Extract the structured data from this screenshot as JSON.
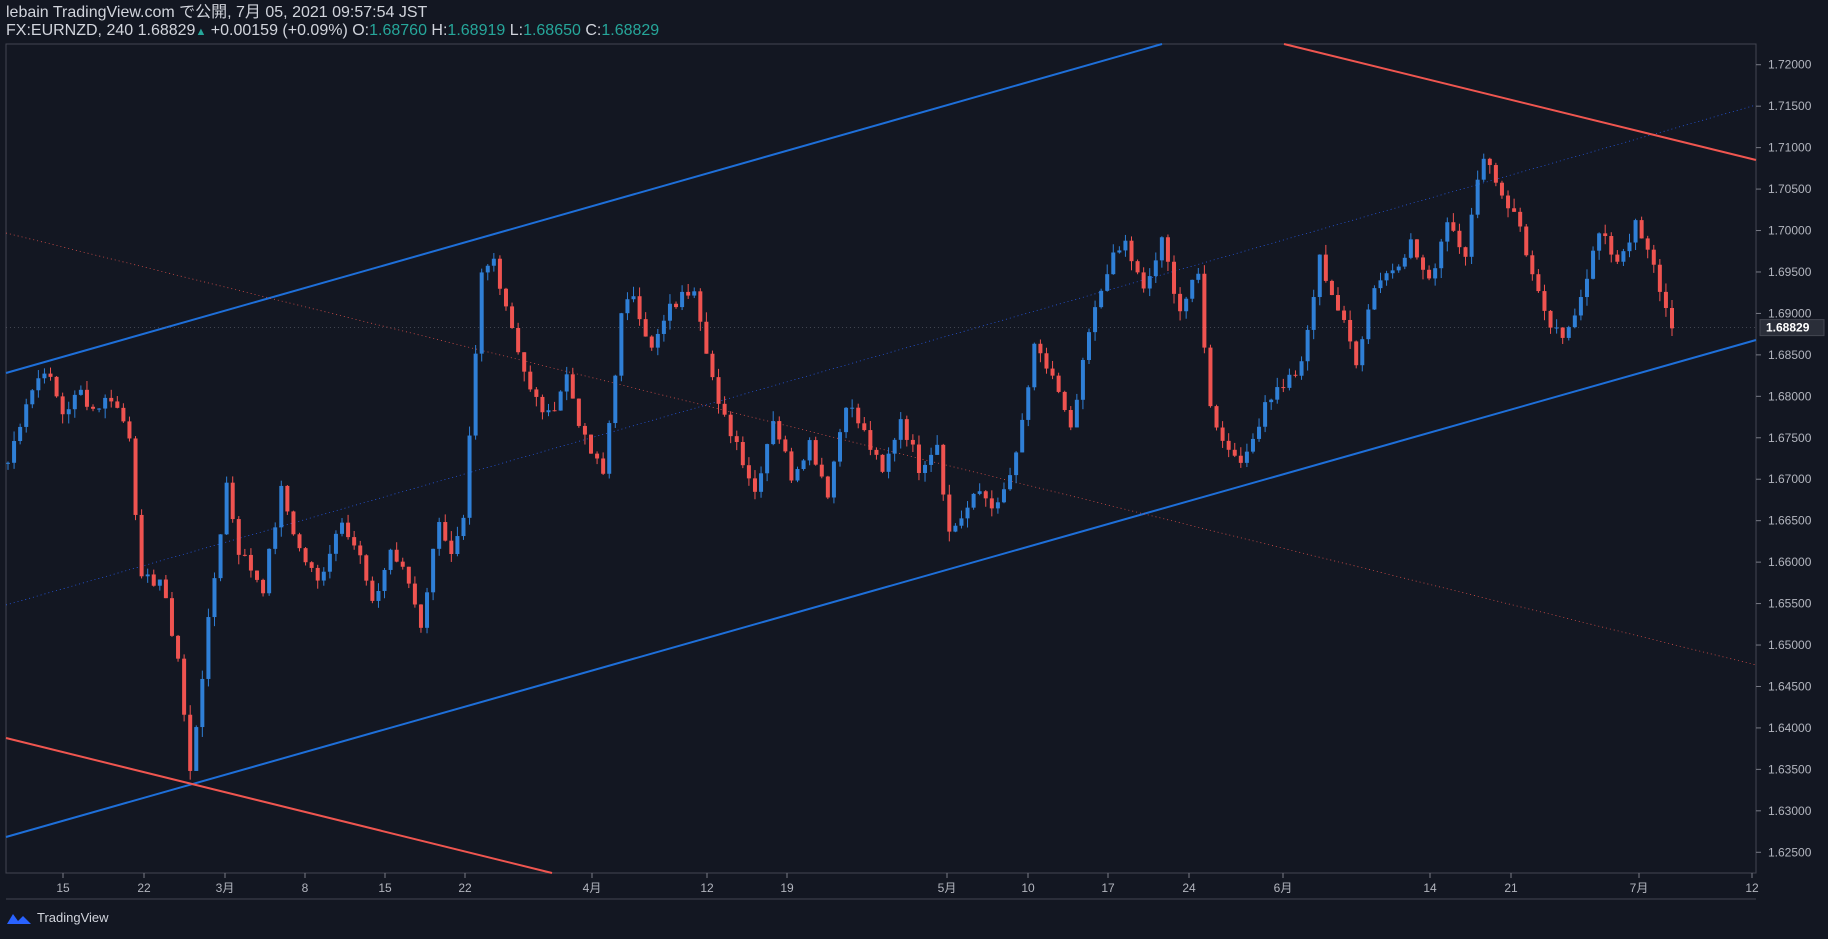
{
  "header": {
    "published": "lebain TradingView.com で公開, 7月 05, 2021 09:57:54 JST",
    "symbol": "FX:EURNZD, 240",
    "last": "1.68829",
    "change": "+0.00159 (+0.09%)",
    "o_label": "O:",
    "o": "1.68760",
    "h_label": "H:",
    "h": "1.68919",
    "l_label": "L:",
    "l": "1.68650",
    "c_label": "C:",
    "c": "1.68829"
  },
  "footer": {
    "brand": "TradingView"
  },
  "colors": {
    "background": "#131722",
    "up": "#2962ff",
    "up_candle": "#2f7fd6",
    "down": "#ef5350",
    "channel": "#1e6fd9",
    "resistance": "#f05650",
    "text": "#d1d4dc",
    "ohlc": "#26a69a"
  },
  "chart_data": {
    "type": "candlestick",
    "symbol": "FX:EURNZD",
    "interval": "240",
    "ylim": [
      1.6225,
      1.7225
    ],
    "y_ticks": [
      "1.72000",
      "1.71500",
      "1.71000",
      "1.70500",
      "1.70000",
      "1.69500",
      "1.69000",
      "1.68500",
      "1.68000",
      "1.67500",
      "1.67000",
      "1.66500",
      "1.66000",
      "1.65500",
      "1.65000",
      "1.64500",
      "1.64000",
      "1.63500",
      "1.63000",
      "1.62500"
    ],
    "price_label": "1.68829",
    "x_ticks": [
      "15",
      "22",
      "3月",
      "8",
      "15",
      "22",
      "4月",
      "12",
      "19",
      "5月",
      "10",
      "17",
      "24",
      "6月",
      "14",
      "21",
      "7月",
      "12"
    ],
    "grid": false,
    "price_path": [
      [
        0,
        1.672
      ],
      [
        3,
        1.6795
      ],
      [
        6,
        1.6835
      ],
      [
        9,
        1.678
      ],
      [
        12,
        1.6805
      ],
      [
        14,
        1.6785
      ],
      [
        17,
        1.68
      ],
      [
        20,
        1.6755
      ],
      [
        22,
        1.6575
      ],
      [
        25,
        1.658
      ],
      [
        28,
        1.6485
      ],
      [
        30,
        1.6345
      ],
      [
        33,
        1.6525
      ],
      [
        36,
        1.6695
      ],
      [
        38,
        1.6615
      ],
      [
        42,
        1.657
      ],
      [
        45,
        1.6685
      ],
      [
        48,
        1.6615
      ],
      [
        51,
        1.6575
      ],
      [
        55,
        1.6655
      ],
      [
        58,
        1.6605
      ],
      [
        60,
        1.6545
      ],
      [
        63,
        1.6615
      ],
      [
        66,
        1.6575
      ],
      [
        68,
        1.6525
      ],
      [
        71,
        1.6655
      ],
      [
        73,
        1.6605
      ],
      [
        75,
        1.6645
      ],
      [
        78,
        1.6945
      ],
      [
        80,
        1.6965
      ],
      [
        83,
        1.6885
      ],
      [
        86,
        1.6805
      ],
      [
        89,
        1.6775
      ],
      [
        92,
        1.6825
      ],
      [
        95,
        1.6745
      ],
      [
        98,
        1.6705
      ],
      [
        101,
        1.6895
      ],
      [
        103,
        1.6925
      ],
      [
        106,
        1.6855
      ],
      [
        109,
        1.6905
      ],
      [
        113,
        1.6935
      ],
      [
        117,
        1.6785
      ],
      [
        120,
        1.6745
      ],
      [
        123,
        1.6685
      ],
      [
        126,
        1.6775
      ],
      [
        129,
        1.6705
      ],
      [
        132,
        1.6745
      ],
      [
        135,
        1.6685
      ],
      [
        138,
        1.6795
      ],
      [
        141,
        1.6755
      ],
      [
        144,
        1.6705
      ],
      [
        147,
        1.6775
      ],
      [
        150,
        1.6715
      ],
      [
        153,
        1.6745
      ],
      [
        155,
        1.6635
      ],
      [
        157,
        1.6655
      ],
      [
        160,
        1.6685
      ],
      [
        163,
        1.6665
      ],
      [
        166,
        1.6725
      ],
      [
        169,
        1.6855
      ],
      [
        172,
        1.6825
      ],
      [
        175,
        1.6755
      ],
      [
        178,
        1.6875
      ],
      [
        181,
        1.6955
      ],
      [
        184,
        1.6985
      ],
      [
        187,
        1.6925
      ],
      [
        190,
        1.6985
      ],
      [
        193,
        1.6905
      ],
      [
        196,
        1.6945
      ],
      [
        198,
        1.6785
      ],
      [
        201,
        1.6735
      ],
      [
        204,
        1.6725
      ],
      [
        207,
        1.6795
      ],
      [
        210,
        1.6815
      ],
      [
        213,
        1.6835
      ],
      [
        216,
        1.6965
      ],
      [
        219,
        1.6905
      ],
      [
        222,
        1.6845
      ],
      [
        225,
        1.6935
      ],
      [
        228,
        1.6955
      ],
      [
        231,
        1.6985
      ],
      [
        234,
        1.6935
      ],
      [
        237,
        1.7015
      ],
      [
        240,
        1.6975
      ],
      [
        243,
        1.7095
      ],
      [
        246,
        1.7045
      ],
      [
        249,
        1.7005
      ],
      [
        251,
        1.6945
      ],
      [
        253,
        1.6895
      ],
      [
        256,
        1.6865
      ],
      [
        259,
        1.6925
      ],
      [
        262,
        1.6995
      ],
      [
        265,
        1.6965
      ],
      [
        268,
        1.7005
      ],
      [
        271,
        1.6955
      ],
      [
        273,
        1.6905
      ],
      [
        274,
        1.6882
      ]
    ],
    "annotations": [
      {
        "name": "channel-upper",
        "color": "#1e6fd9",
        "style": "solid"
      },
      {
        "name": "channel-lower",
        "color": "#1e6fd9",
        "style": "solid"
      },
      {
        "name": "channel-mid",
        "color": "#2962ff",
        "style": "dotted"
      },
      {
        "name": "resistance-upper",
        "color": "#f05650",
        "style": "solid"
      },
      {
        "name": "resistance-lower",
        "color": "#f05650",
        "style": "solid"
      },
      {
        "name": "resistance-mid",
        "color": "#f05650",
        "style": "dotted"
      }
    ]
  }
}
